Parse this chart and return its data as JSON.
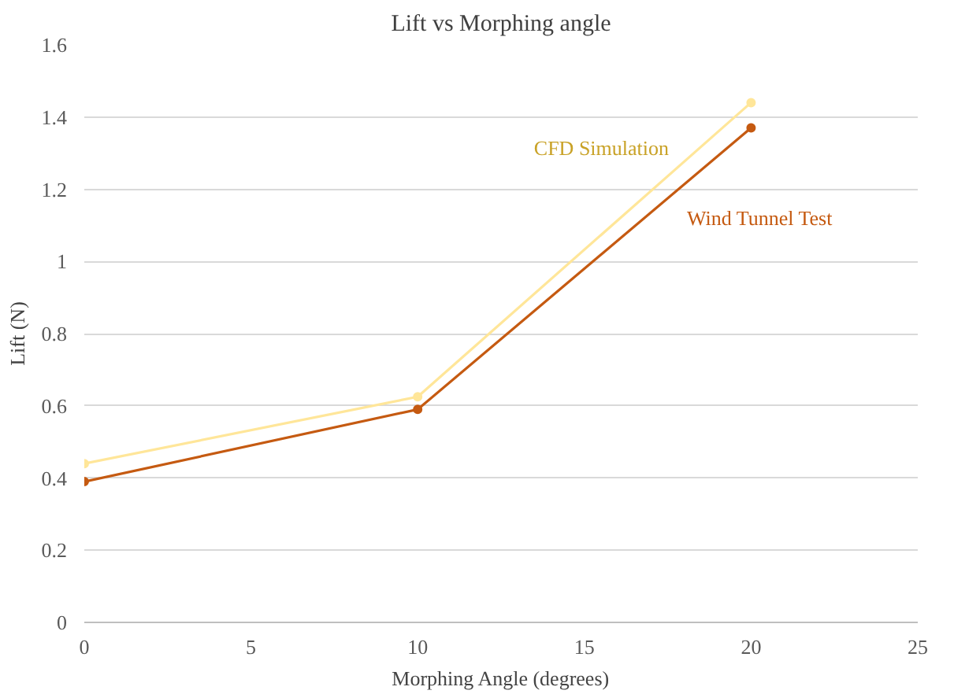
{
  "chart_data": {
    "type": "line",
    "title": "Lift vs Morphing angle",
    "xlabel": "Morphing Angle (degrees)",
    "ylabel": "Lift (N)",
    "x": [
      0,
      10,
      20
    ],
    "series": [
      {
        "name": "CFD Simulation",
        "color": "#ffe699",
        "values": [
          0.44,
          0.625,
          1.44
        ]
      },
      {
        "name": "Wind Tunnel Test",
        "color": "#c55a11",
        "values": [
          0.39,
          0.59,
          1.37
        ]
      }
    ],
    "xlim": [
      0,
      25
    ],
    "xticks": [
      0,
      5,
      10,
      15,
      20,
      25
    ],
    "ylim": [
      0,
      1.6
    ],
    "yticks": [
      0,
      0.2,
      0.4,
      0.6,
      0.8,
      1,
      1.2,
      1.4,
      1.6
    ],
    "grid": "y",
    "marker": "circle",
    "line_style": "solid"
  }
}
